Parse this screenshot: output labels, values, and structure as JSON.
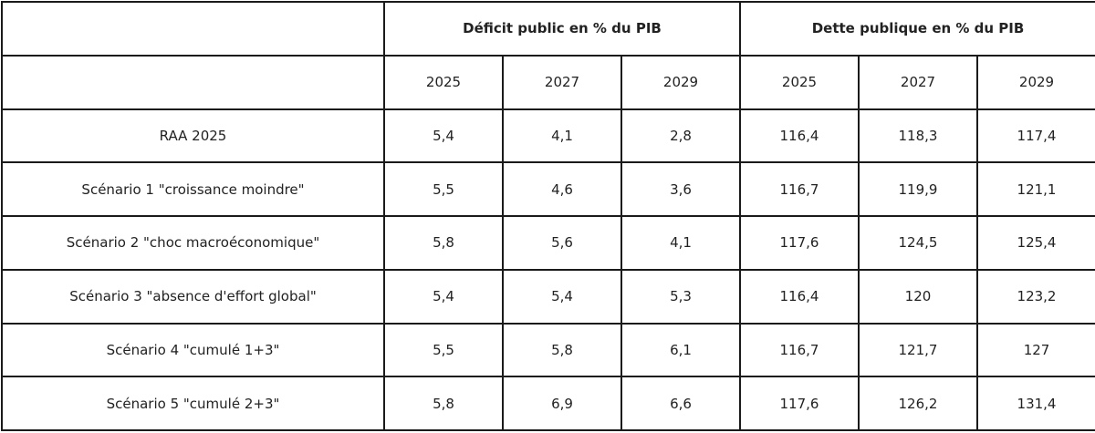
{
  "table": {
    "group_headers": [
      "",
      "Déficit public en % du PIB",
      "Dette publique en % du PIB"
    ],
    "years": [
      "2025",
      "2027",
      "2029",
      "2025",
      "2027",
      "2029"
    ],
    "rows": [
      {
        "label": "RAA 2025",
        "values": [
          "5,4",
          "4,1",
          "2,8",
          "116,4",
          "118,3",
          "117,4"
        ]
      },
      {
        "label": "Scénario 1 \"croissance moindre\"",
        "values": [
          "5,5",
          "4,6",
          "3,6",
          "116,7",
          "119,9",
          "121,1"
        ]
      },
      {
        "label": "Scénario 2 \"choc macroéconomique\"",
        "values": [
          "5,8",
          "5,6",
          "4,1",
          "117,6",
          "124,5",
          "125,4"
        ]
      },
      {
        "label": "Scénario 3 \"absence d'effort global\"",
        "values": [
          "5,4",
          "5,4",
          "5,3",
          "116,4",
          "120",
          "123,2"
        ]
      },
      {
        "label": "Scénario 4 \"cumulé 1+3\"",
        "values": [
          "5,5",
          "5,8",
          "6,1",
          "116,7",
          "121,7",
          "127"
        ]
      },
      {
        "label": "Scénario 5 \"cumulé 2+3\"",
        "values": [
          "5,8",
          "6,9",
          "6,6",
          "117,6",
          "126,2",
          "131,4"
        ]
      }
    ]
  }
}
